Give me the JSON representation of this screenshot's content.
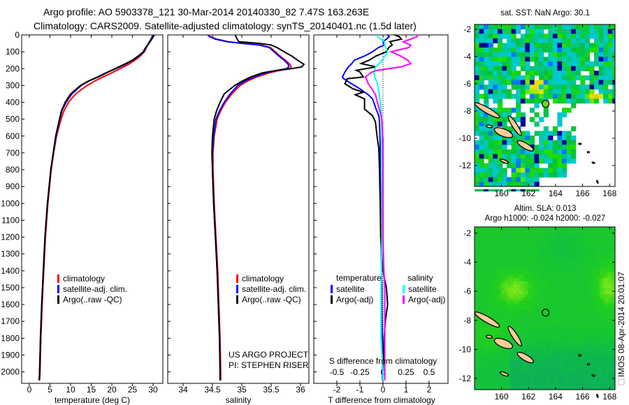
{
  "title": {
    "line1": "Argo profile: AO 5903378_121 30-Mar-2014 20140330_82 7.47S 163.263E",
    "line2": "Climatology: CARS2009. Satellite-adjusted climatology: synTS_20140401.nc (1.5d later)"
  },
  "credits": {
    "project": "US ARGO PROJECT",
    "pi": "PI: STEPHEN RISER"
  },
  "footer": "IMOS 08-Apr-2014 20:01:07",
  "chart_data": [
    {
      "id": "temperature",
      "type": "line",
      "xlabel": "temperature (deg C)",
      "ylabel": "",
      "xlim": [
        -1.86,
        32.37
      ],
      "ylim": [
        2068,
        0
      ],
      "xticks": [
        0,
        5,
        10,
        15,
        20,
        25,
        30
      ],
      "yticks": [
        0,
        100,
        200,
        300,
        400,
        500,
        600,
        700,
        800,
        900,
        1000,
        1100,
        1200,
        1300,
        1400,
        1500,
        1600,
        1700,
        1800,
        1900,
        2000
      ],
      "legend_position": "center-left",
      "depth": [
        0,
        10,
        25,
        50,
        75,
        100,
        125,
        150,
        175,
        200,
        225,
        250,
        275,
        300,
        350,
        400,
        450,
        500,
        600,
        700,
        800,
        900,
        1000,
        1200,
        1400,
        1600,
        1800,
        2000,
        2050
      ],
      "series": [
        {
          "name": "climatology",
          "color": "#ff0000",
          "values": [
            30.0,
            29.8,
            29.5,
            28.9,
            28.4,
            27.9,
            26.9,
            25.6,
            24.0,
            22.0,
            20.0,
            17.8,
            15.8,
            14.0,
            11.2,
            9.5,
            8.4,
            7.7,
            6.6,
            5.9,
            5.3,
            4.9,
            4.5,
            3.9,
            3.5,
            3.1,
            2.8,
            2.6,
            2.5
          ]
        },
        {
          "name": "satellite-adj. clim.",
          "color": "#0000ff",
          "values": [
            30.0,
            29.8,
            29.5,
            28.9,
            28.3,
            27.8,
            26.6,
            25.1,
            23.2,
            21.0,
            18.6,
            16.5,
            14.3,
            12.6,
            10.3,
            8.9,
            7.9,
            7.4,
            6.5,
            5.8,
            5.2,
            4.8,
            4.4,
            3.8,
            3.4,
            3.0,
            2.7,
            2.5,
            2.4
          ]
        },
        {
          "name": "Argo(..raw -QC)",
          "color": "#000000",
          "values": [
            30.3,
            30.1,
            29.7,
            29.0,
            28.2,
            27.6,
            26.4,
            25.0,
            23.0,
            20.8,
            18.7,
            16.7,
            14.2,
            12.4,
            10.0,
            8.7,
            7.8,
            7.3,
            6.4,
            5.8,
            5.2,
            4.8,
            4.4,
            3.8,
            3.4,
            3.0,
            2.7,
            2.5,
            2.4
          ]
        }
      ]
    },
    {
      "id": "salinity",
      "type": "line",
      "xlabel": "salinity",
      "xlim": [
        33.738,
        36.143
      ],
      "ylim": [
        2068,
        0
      ],
      "xticks": [
        34,
        34.5,
        35,
        35.5,
        36
      ],
      "legend_position": "center-left",
      "depth": [
        0,
        10,
        25,
        40,
        50,
        60,
        75,
        100,
        125,
        150,
        175,
        190,
        200,
        210,
        225,
        250,
        275,
        300,
        350,
        400,
        450,
        500,
        600,
        700,
        800,
        1000,
        1200,
        1400,
        1600,
        1800,
        2000,
        2050
      ],
      "series": [
        {
          "name": "climatology",
          "color": "#ff0000",
          "values": [
            34.43,
            34.46,
            34.57,
            34.77,
            35.02,
            35.32,
            35.49,
            35.57,
            35.65,
            35.74,
            35.82,
            35.84,
            35.82,
            35.66,
            35.47,
            35.25,
            35.09,
            34.97,
            34.83,
            34.72,
            34.64,
            34.58,
            34.53,
            34.51,
            34.51,
            34.53,
            34.56,
            34.59,
            34.61,
            34.63,
            34.64,
            34.64
          ]
        },
        {
          "name": "satellite-adj. clim.",
          "color": "#0000ff",
          "values": [
            34.42,
            34.45,
            34.55,
            34.75,
            35.0,
            35.3,
            35.47,
            35.55,
            35.63,
            35.72,
            35.79,
            35.8,
            35.76,
            35.6,
            35.42,
            35.2,
            35.05,
            34.93,
            34.8,
            34.7,
            34.62,
            34.56,
            34.52,
            34.5,
            34.5,
            34.52,
            34.55,
            34.58,
            34.6,
            34.62,
            34.63,
            34.63
          ]
        },
        {
          "name": "Argo(..raw -QC)",
          "color": "#000000",
          "values": [
            34.89,
            34.9,
            34.92,
            34.95,
            35.3,
            35.5,
            35.6,
            35.72,
            35.85,
            35.95,
            36.06,
            36.02,
            35.85,
            35.6,
            35.35,
            35.15,
            35.0,
            34.88,
            34.7,
            34.63,
            34.57,
            34.53,
            34.5,
            34.49,
            34.5,
            34.52,
            34.55,
            34.58,
            34.6,
            34.62,
            34.63,
            34.63
          ]
        }
      ]
    },
    {
      "id": "difference",
      "type": "line",
      "xlabel": "T difference from climatology",
      "x2label": "S difference from climatology",
      "xlim": [
        -3.0,
        2.82
      ],
      "x2lim": [
        -0.75,
        0.705
      ],
      "ylim": [
        2068,
        0
      ],
      "xticks": [
        -2,
        -1,
        0,
        1,
        2
      ],
      "x2ticks": [
        -0.5,
        -0.25,
        0,
        0.25,
        0.5
      ],
      "x2ticklabels": [
        "-0.5",
        "-0.25",
        "0",
        "0.25",
        "0.5"
      ],
      "legend_headers": {
        "temperature": "temperature",
        "salinity": "salinity"
      },
      "depth": [
        0,
        10,
        25,
        40,
        60,
        75,
        100,
        125,
        150,
        170,
        190,
        210,
        220,
        250,
        260,
        290,
        320,
        340,
        355,
        380,
        440,
        480,
        515,
        620,
        675,
        800,
        1000,
        1200,
        1400,
        1500,
        1600,
        1700,
        1800,
        2000,
        2050
      ],
      "series": [
        {
          "name": "satellite",
          "axis": "T",
          "color": "#0000ff",
          "values": [
            0.2,
            0.27,
            0.15,
            0.0,
            0.06,
            -0.2,
            -0.45,
            -0.8,
            -1.24,
            -1.35,
            -1.5,
            -1.6,
            -1.65,
            -1.76,
            -1.7,
            -1.36,
            -1.0,
            -0.8,
            -0.64,
            -0.45,
            -0.3,
            -0.18,
            -0.15,
            -0.13,
            -0.12,
            -0.12,
            -0.1,
            -0.08,
            -0.06,
            -0.05,
            -0.05,
            -0.04,
            -0.03,
            -0.02,
            -0.02
          ]
        },
        {
          "name": "Argo(-adj)",
          "axis": "T",
          "color": "#000000",
          "values": [
            0.5,
            0.7,
            0.8,
            0.3,
            0.4,
            0.25,
            0.15,
            -0.3,
            -0.6,
            -0.95,
            -0.3,
            -1.15,
            -1.0,
            -0.85,
            -1.55,
            -1.65,
            -1.3,
            -0.85,
            -1.2,
            -0.8,
            -0.8,
            -0.45,
            -0.33,
            -0.24,
            -0.18,
            -0.15,
            -0.12,
            -0.1,
            0.0,
            0.15,
            0.2,
            0.1,
            0.05,
            0.0,
            0.0
          ]
        },
        {
          "name": "satellite",
          "axis": "S",
          "color": "#00ffff",
          "values": [
            -0.06,
            -0.06,
            -0.02,
            0.015,
            0.02,
            0.03,
            0.05,
            0.02,
            -0.01,
            -0.04,
            -0.08,
            -0.09,
            -0.1,
            -0.09,
            -0.08,
            -0.06,
            -0.05,
            -0.045,
            -0.04,
            -0.035,
            -0.02,
            -0.015,
            -0.015,
            -0.01,
            -0.01,
            -0.01,
            -0.01,
            -0.01,
            -0.015,
            -0.02,
            -0.02,
            -0.02,
            -0.02,
            0.0,
            0.0
          ]
        },
        {
          "name": "Argo(-adj)",
          "axis": "S",
          "color": "#ff00ff",
          "values": [
            0.37,
            0.37,
            0.3,
            0.22,
            0.3,
            0.28,
            0.09,
            0.19,
            0.27,
            0.3,
            0.2,
            -0.06,
            -0.12,
            -0.19,
            -0.18,
            -0.16,
            -0.12,
            -0.1,
            -0.08,
            -0.07,
            -0.04,
            -0.02,
            -0.01,
            0,
            0,
            0,
            0,
            0,
            0.01,
            0.02,
            0.02,
            0.02,
            0.02,
            0.02,
            0.02
          ]
        }
      ]
    },
    {
      "id": "sst-map",
      "type": "heatmap",
      "title": "sat. SST: NaN Argo: 30.1",
      "lonlim": [
        158.01,
        168.4
      ],
      "latlim": [
        -13.54,
        -1.64
      ],
      "lonticks": [
        160,
        162,
        164,
        166,
        168
      ],
      "latticks": [
        -2,
        -4,
        -6,
        -8,
        -10,
        -12
      ],
      "argo_position": {
        "lon": 163.263,
        "lat": -7.47
      },
      "argo_marker_color": "#66dd22"
    },
    {
      "id": "sla-map",
      "type": "heatmap",
      "title": "Altim. SLA: 0.013",
      "subtitle": "Argo h1000: -0.024 h2000: -0.027",
      "lonlim": [
        158.01,
        168.4
      ],
      "latlim": [
        -12.77,
        -1.57
      ],
      "lonticks": [
        160,
        162,
        164,
        166,
        168
      ],
      "latticks": [
        -2,
        -4,
        -6,
        -8,
        -10,
        -12
      ],
      "argo_position": {
        "lon": 163.263,
        "lat": -7.47
      }
    }
  ],
  "islands": [
    {
      "lon": 158.95,
      "lat": -7.95,
      "a": 1.05,
      "b": 0.2,
      "angle": 30
    },
    {
      "lon": 160.99,
      "lat": -9.08,
      "a": 0.85,
      "b": 0.18,
      "angle": 57
    },
    {
      "lon": 160.15,
      "lat": -9.59,
      "a": 0.72,
      "b": 0.27,
      "angle": 22
    },
    {
      "lon": 161.77,
      "lat": -10.56,
      "a": 0.68,
      "b": 0.2,
      "angle": 30
    },
    {
      "lon": 160.21,
      "lat": -11.69,
      "a": 0.33,
      "b": 0.1,
      "angle": 22
    },
    {
      "lon": 159.1,
      "lat": -9.13,
      "a": 0.22,
      "b": 0.1,
      "angle": 10
    },
    {
      "lon": 165.8,
      "lat": -10.41,
      "a": 0.1,
      "b": 0.05,
      "angle": 0
    },
    {
      "lon": 166.43,
      "lat": -11.02,
      "a": 0.08,
      "b": 0.05,
      "angle": 0
    },
    {
      "lon": 166.8,
      "lat": -11.8,
      "a": 0.1,
      "b": 0.05,
      "angle": 20
    },
    {
      "lon": 167.1,
      "lat": -13.2,
      "a": 0.12,
      "b": 0.04,
      "angle": 70
    }
  ],
  "colors": {
    "land": "#ffcc99",
    "coast": "#000000"
  }
}
